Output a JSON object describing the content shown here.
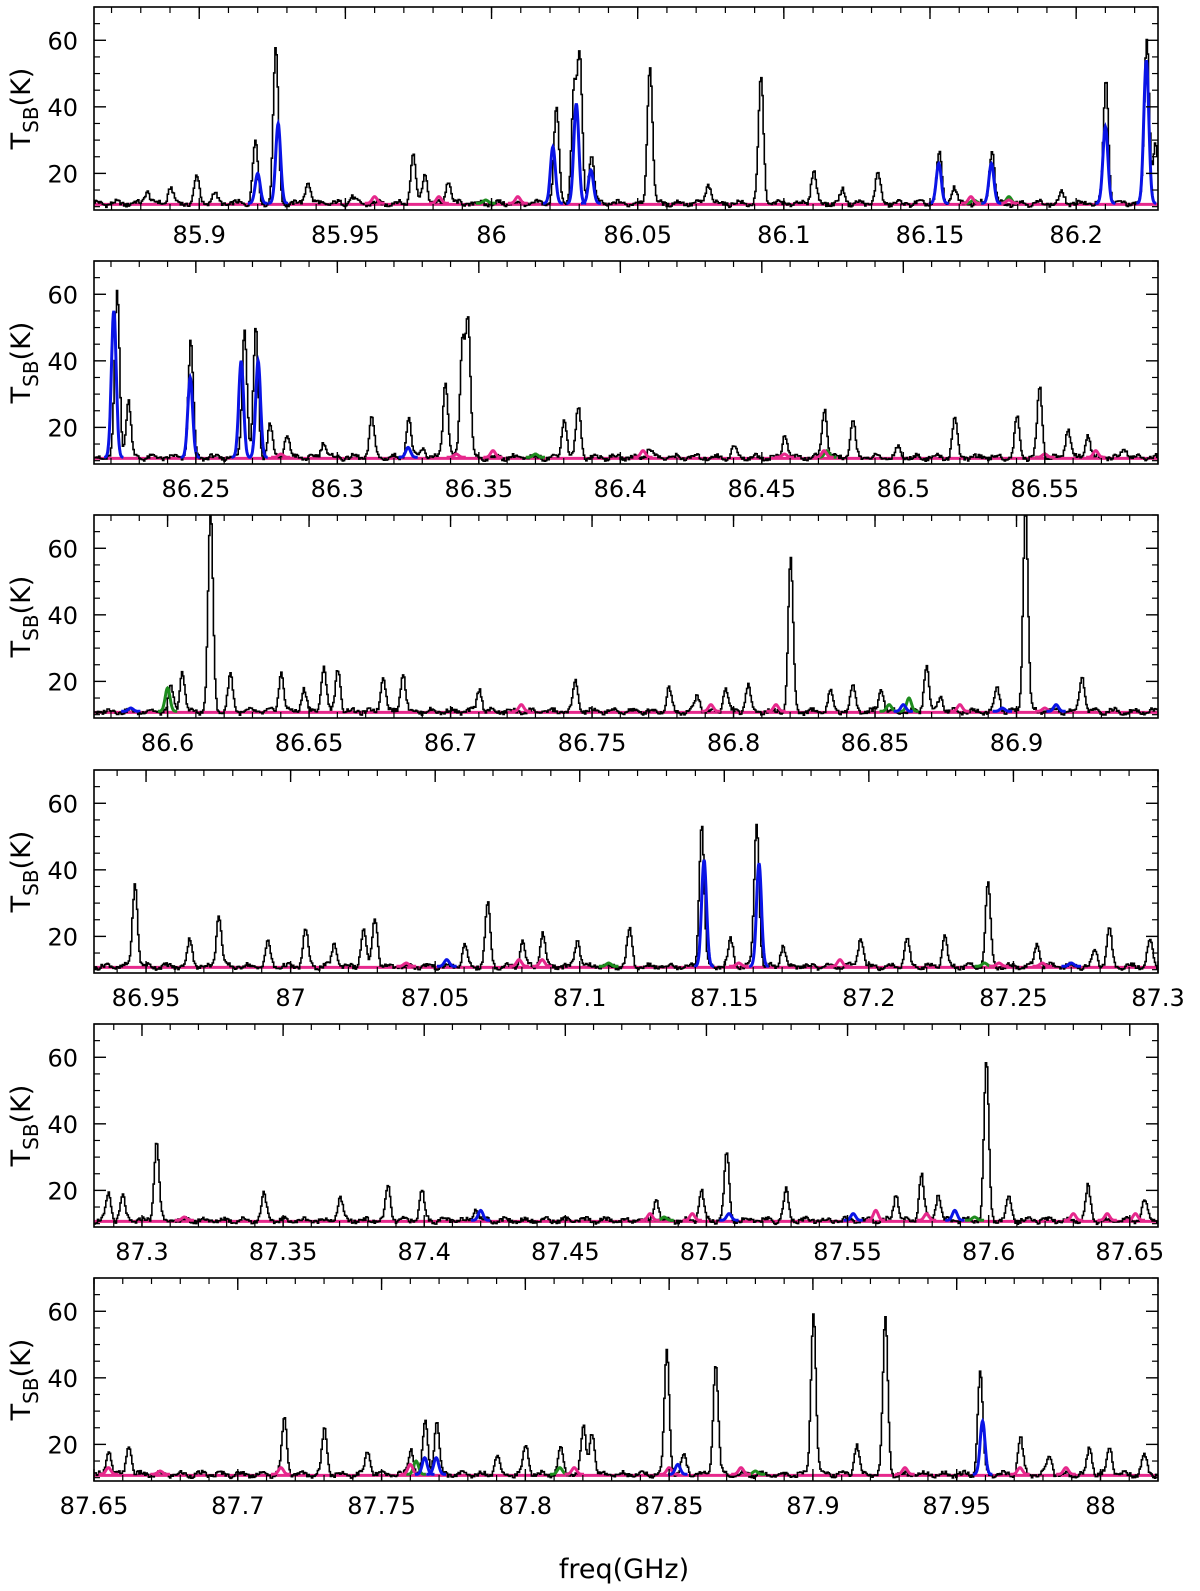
{
  "figure": {
    "xlabel": "freq(GHz)",
    "ylabel_main": "T",
    "ylabel_sub": "SB",
    "ylabel_unit": "(K)"
  },
  "colors": {
    "observed": "#000000",
    "blue_model": "#0a14e6",
    "green_model": "#1e8c1e",
    "magenta_model": "#e6288c",
    "baseline": "#e6288c"
  },
  "chart_data": [
    {
      "type": "line",
      "panel": 1,
      "xlim": [
        85.864,
        86.228
      ],
      "ylim": [
        9,
        70
      ],
      "yticks": [
        20,
        40,
        60
      ],
      "xticks": [
        85.9,
        85.95,
        86,
        86.05,
        86.1,
        86.15,
        86.2
      ],
      "xtick_labels": [
        "85.9",
        "85.95",
        "86",
        "86.05",
        "86.1",
        "86.15",
        "86.2"
      ],
      "baseline": 11,
      "peaks": [
        [
          85.882,
          15
        ],
        [
          85.89,
          16
        ],
        [
          85.899,
          19
        ],
        [
          85.905,
          14
        ],
        [
          85.919,
          30
        ],
        [
          85.926,
          58
        ],
        [
          85.937,
          18
        ],
        [
          85.952,
          13
        ],
        [
          85.973,
          26
        ],
        [
          85.977,
          20
        ],
        [
          85.985,
          18
        ],
        [
          86.022,
          40
        ],
        [
          86.028,
          44
        ],
        [
          86.03,
          54
        ],
        [
          86.034,
          26
        ],
        [
          86.054,
          53
        ],
        [
          86.074,
          17
        ],
        [
          86.092,
          49
        ],
        [
          86.11,
          21
        ],
        [
          86.12,
          15
        ],
        [
          86.132,
          20
        ],
        [
          86.153,
          26
        ],
        [
          86.158,
          16
        ],
        [
          86.171,
          27
        ],
        [
          86.195,
          14
        ],
        [
          86.21,
          48
        ],
        [
          86.224,
          61
        ],
        [
          86.227,
          29
        ]
      ],
      "blue_peaks": [
        [
          85.92,
          20
        ],
        [
          85.927,
          35
        ],
        [
          86.021,
          28
        ],
        [
          86.029,
          41
        ],
        [
          86.034,
          21
        ],
        [
          86.153,
          23
        ],
        [
          86.171,
          23
        ],
        [
          86.21,
          34
        ],
        [
          86.224,
          54
        ]
      ],
      "green_peaks": [
        [
          85.998,
          12
        ],
        [
          86.165,
          12
        ],
        [
          86.177,
          13
        ]
      ],
      "magenta_peaks": [
        [
          85.96,
          13
        ],
        [
          85.982,
          13
        ],
        [
          86.009,
          13
        ],
        [
          86.164,
          13
        ],
        [
          86.177,
          12
        ]
      ]
    },
    {
      "type": "line",
      "panel": 2,
      "xlim": [
        86.214,
        86.59
      ],
      "ylim": [
        9,
        70
      ],
      "yticks": [
        20,
        40,
        60
      ],
      "xticks": [
        86.25,
        86.3,
        86.35,
        86.4,
        86.45,
        86.5,
        86.55
      ],
      "xtick_labels": [
        "86.25",
        "86.3",
        "86.35",
        "86.4",
        "86.45",
        "86.5",
        "86.55"
      ],
      "baseline": 11,
      "peaks": [
        [
          86.222,
          61
        ],
        [
          86.226,
          28
        ],
        [
          86.248,
          46
        ],
        [
          86.267,
          50
        ],
        [
          86.271,
          50
        ],
        [
          86.276,
          21
        ],
        [
          86.282,
          18
        ],
        [
          86.295,
          16
        ],
        [
          86.312,
          23
        ],
        [
          86.325,
          23
        ],
        [
          86.33,
          14
        ],
        [
          86.338,
          34
        ],
        [
          86.344,
          45
        ],
        [
          86.346,
          51
        ],
        [
          86.38,
          23
        ],
        [
          86.385,
          26
        ],
        [
          86.41,
          14
        ],
        [
          86.44,
          14
        ],
        [
          86.458,
          18
        ],
        [
          86.472,
          26
        ],
        [
          86.482,
          22
        ],
        [
          86.498,
          14
        ],
        [
          86.518,
          23
        ],
        [
          86.54,
          23
        ],
        [
          86.548,
          32
        ],
        [
          86.558,
          20
        ],
        [
          86.565,
          18
        ],
        [
          86.578,
          14
        ]
      ],
      "blue_peaks": [
        [
          86.221,
          55
        ],
        [
          86.248,
          35
        ],
        [
          86.266,
          40
        ],
        [
          86.272,
          40
        ],
        [
          86.325,
          14
        ]
      ],
      "green_peaks": [
        [
          86.37,
          12
        ],
        [
          86.473,
          13
        ],
        [
          86.55,
          12
        ]
      ],
      "magenta_peaks": [
        [
          86.28,
          12
        ],
        [
          86.342,
          12
        ],
        [
          86.355,
          13
        ],
        [
          86.408,
          13
        ],
        [
          86.458,
          12
        ],
        [
          86.472,
          13
        ],
        [
          86.55,
          12
        ],
        [
          86.568,
          13
        ]
      ]
    },
    {
      "type": "line",
      "panel": 3,
      "xlim": [
        86.574,
        86.95
      ],
      "ylim": [
        9,
        70
      ],
      "yticks": [
        20,
        40,
        60
      ],
      "xticks": [
        86.6,
        86.65,
        86.7,
        86.75,
        86.8,
        86.85,
        86.9
      ],
      "xtick_labels": [
        "86.6",
        "86.65",
        "86.7",
        "86.75",
        "86.8",
        "86.85",
        "86.9"
      ],
      "baseline": 11,
      "peaks": [
        [
          86.601,
          18
        ],
        [
          86.605,
          23
        ],
        [
          86.615,
          72
        ],
        [
          86.622,
          22
        ],
        [
          86.64,
          23
        ],
        [
          86.648,
          18
        ],
        [
          86.655,
          25
        ],
        [
          86.66,
          24
        ],
        [
          86.676,
          22
        ],
        [
          86.683,
          23
        ],
        [
          86.71,
          18
        ],
        [
          86.744,
          20
        ],
        [
          86.777,
          18
        ],
        [
          86.787,
          16
        ],
        [
          86.797,
          18
        ],
        [
          86.805,
          19
        ],
        [
          86.82,
          57
        ],
        [
          86.834,
          17
        ],
        [
          86.842,
          19
        ],
        [
          86.852,
          18
        ],
        [
          86.868,
          25
        ],
        [
          86.873,
          16
        ],
        [
          86.893,
          18
        ],
        [
          86.903,
          72
        ],
        [
          86.923,
          22
        ]
      ],
      "blue_peaks": [
        [
          86.587,
          12
        ],
        [
          86.86,
          13
        ],
        [
          86.895,
          12
        ],
        [
          86.914,
          13
        ]
      ],
      "green_peaks": [
        [
          86.6,
          18
        ],
        [
          86.855,
          13
        ],
        [
          86.862,
          15
        ]
      ],
      "magenta_peaks": [
        [
          86.725,
          13
        ],
        [
          86.792,
          13
        ],
        [
          86.815,
          13
        ],
        [
          86.88,
          13
        ],
        [
          86.91,
          12
        ]
      ]
    },
    {
      "type": "line",
      "panel": 4,
      "xlim": [
        86.932,
        87.3
      ],
      "ylim": [
        9,
        70
      ],
      "yticks": [
        20,
        40,
        60
      ],
      "xticks": [
        86.95,
        87,
        87.05,
        87.1,
        87.15,
        87.2,
        87.25,
        87.3
      ],
      "xtick_labels": [
        "86.95",
        "87",
        "87.05",
        "87.1",
        "87.15",
        "87.2",
        "87.25",
        "87.3"
      ],
      "baseline": 11,
      "peaks": [
        [
          86.946,
          36
        ],
        [
          86.965,
          19
        ],
        [
          86.975,
          27
        ],
        [
          86.992,
          18
        ],
        [
          87.005,
          22
        ],
        [
          87.015,
          18
        ],
        [
          87.025,
          22
        ],
        [
          87.029,
          26
        ],
        [
          87.06,
          17
        ],
        [
          87.068,
          30
        ],
        [
          87.08,
          19
        ],
        [
          87.087,
          21
        ],
        [
          87.099,
          19
        ],
        [
          87.117,
          22
        ],
        [
          87.142,
          54
        ],
        [
          87.152,
          19
        ],
        [
          87.161,
          54
        ],
        [
          87.17,
          17
        ],
        [
          87.197,
          20
        ],
        [
          87.213,
          19
        ],
        [
          87.226,
          20
        ],
        [
          87.241,
          36
        ],
        [
          87.258,
          18
        ],
        [
          87.278,
          16
        ],
        [
          87.283,
          22
        ],
        [
          87.297,
          19
        ]
      ],
      "blue_peaks": [
        [
          87.054,
          13
        ],
        [
          87.143,
          43
        ],
        [
          87.162,
          42
        ],
        [
          87.27,
          12
        ]
      ],
      "green_peaks": [
        [
          87.11,
          12
        ],
        [
          87.24,
          12
        ]
      ],
      "magenta_peaks": [
        [
          87.04,
          12
        ],
        [
          87.079,
          13
        ],
        [
          87.087,
          13
        ],
        [
          87.155,
          12
        ],
        [
          87.19,
          13
        ],
        [
          87.245,
          12
        ],
        [
          87.26,
          12
        ]
      ]
    },
    {
      "type": "line",
      "panel": 5,
      "xlim": [
        87.283,
        87.66
      ],
      "ylim": [
        9,
        70
      ],
      "yticks": [
        20,
        40,
        60
      ],
      "xticks": [
        87.3,
        87.35,
        87.4,
        87.45,
        87.5,
        87.55,
        87.6,
        87.65
      ],
      "xtick_labels": [
        "87.3",
        "87.35",
        "87.4",
        "87.45",
        "87.5",
        "87.55",
        "87.6",
        "87.65"
      ],
      "baseline": 11,
      "peaks": [
        [
          87.288,
          19
        ],
        [
          87.293,
          18
        ],
        [
          87.305,
          35
        ],
        [
          87.343,
          19
        ],
        [
          87.37,
          18
        ],
        [
          87.387,
          21
        ],
        [
          87.399,
          20
        ],
        [
          87.418,
          15
        ],
        [
          87.482,
          18
        ],
        [
          87.498,
          20
        ],
        [
          87.507,
          31
        ],
        [
          87.528,
          20
        ],
        [
          87.567,
          19
        ],
        [
          87.576,
          25
        ],
        [
          87.582,
          19
        ],
        [
          87.599,
          59
        ],
        [
          87.607,
          18
        ],
        [
          87.635,
          21
        ],
        [
          87.655,
          17
        ]
      ],
      "blue_peaks": [
        [
          87.42,
          14
        ],
        [
          87.508,
          13
        ],
        [
          87.552,
          13
        ],
        [
          87.588,
          14
        ]
      ],
      "green_peaks": [
        [
          87.485,
          12
        ],
        [
          87.595,
          12
        ]
      ],
      "magenta_peaks": [
        [
          87.315,
          12
        ],
        [
          87.48,
          13
        ],
        [
          87.495,
          13
        ],
        [
          87.56,
          14
        ],
        [
          87.578,
          13
        ],
        [
          87.63,
          13
        ],
        [
          87.642,
          13
        ],
        [
          87.652,
          13
        ]
      ]
    },
    {
      "type": "line",
      "panel": 6,
      "xlim": [
        87.65,
        88.02
      ],
      "ylim": [
        9,
        70
      ],
      "yticks": [
        20,
        40,
        60
      ],
      "xticks": [
        87.65,
        87.7,
        87.75,
        87.8,
        87.85,
        87.9,
        87.95,
        88
      ],
      "xtick_labels": [
        "87.65",
        "87.7",
        "87.75",
        "87.8",
        "87.85",
        "87.9",
        "87.95",
        "88"
      ],
      "baseline": 11,
      "peaks": [
        [
          87.655,
          18
        ],
        [
          87.662,
          20
        ],
        [
          87.716,
          28
        ],
        [
          87.73,
          25
        ],
        [
          87.745,
          18
        ],
        [
          87.76,
          19
        ],
        [
          87.765,
          27
        ],
        [
          87.769,
          27
        ],
        [
          87.79,
          17
        ],
        [
          87.8,
          20
        ],
        [
          87.812,
          19
        ],
        [
          87.82,
          25
        ],
        [
          87.823,
          24
        ],
        [
          87.849,
          48
        ],
        [
          87.855,
          17
        ],
        [
          87.866,
          45
        ],
        [
          87.9,
          60
        ],
        [
          87.915,
          20
        ],
        [
          87.925,
          58
        ],
        [
          87.958,
          42
        ],
        [
          87.972,
          22
        ],
        [
          87.982,
          17
        ],
        [
          87.996,
          19
        ],
        [
          88.003,
          19
        ],
        [
          88.015,
          17
        ]
      ],
      "blue_peaks": [
        [
          87.765,
          16
        ],
        [
          87.769,
          16
        ],
        [
          87.853,
          14
        ],
        [
          87.959,
          27
        ]
      ],
      "green_peaks": [
        [
          87.762,
          15
        ],
        [
          87.812,
          13
        ],
        [
          87.88,
          12
        ]
      ],
      "magenta_peaks": [
        [
          87.655,
          13
        ],
        [
          87.673,
          12
        ],
        [
          87.715,
          13
        ],
        [
          87.76,
          14
        ],
        [
          87.817,
          13
        ],
        [
          87.85,
          13
        ],
        [
          87.875,
          13
        ],
        [
          87.932,
          13
        ],
        [
          87.972,
          13
        ],
        [
          87.988,
          13
        ]
      ]
    }
  ]
}
